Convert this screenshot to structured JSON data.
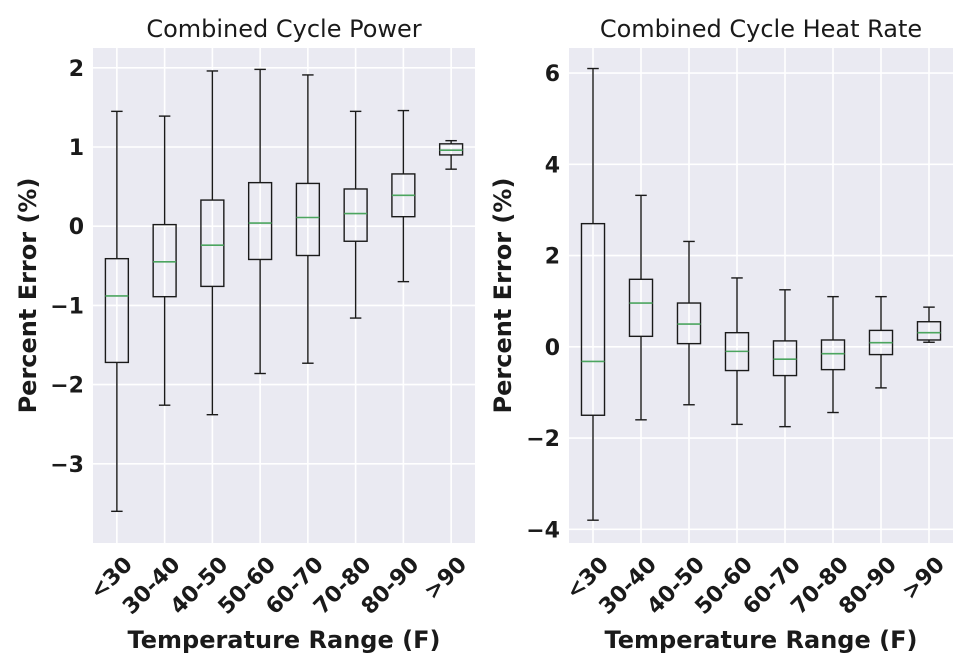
{
  "chart_data": [
    {
      "type": "box",
      "title": "Combined Cycle Power",
      "xlabel": "Temperature Range (F)",
      "ylabel": "Percent Error (%)",
      "ylim": [
        -4.0,
        2.25
      ],
      "yticks": [
        -3,
        -2,
        -1,
        0,
        1,
        2
      ],
      "ytick_labels": [
        "−3",
        "−2",
        "−1",
        "0",
        "1",
        "2"
      ],
      "grid": true,
      "categories": [
        "<30",
        "30-40",
        "40-50",
        "50-60",
        "60-70",
        "70-80",
        "80-90",
        ">90"
      ],
      "boxes": [
        {
          "whislo": -3.6,
          "q1": -1.72,
          "med": -0.88,
          "q3": -0.41,
          "whishi": 1.45
        },
        {
          "whislo": -2.26,
          "q1": -0.89,
          "med": -0.45,
          "q3": 0.02,
          "whishi": 1.39
        },
        {
          "whislo": -2.38,
          "q1": -0.76,
          "med": -0.24,
          "q3": 0.33,
          "whishi": 1.96
        },
        {
          "whislo": -1.86,
          "q1": -0.42,
          "med": 0.04,
          "q3": 0.55,
          "whishi": 1.98
        },
        {
          "whislo": -1.73,
          "q1": -0.37,
          "med": 0.11,
          "q3": 0.54,
          "whishi": 1.91
        },
        {
          "whislo": -1.16,
          "q1": -0.19,
          "med": 0.16,
          "q3": 0.47,
          "whishi": 1.45
        },
        {
          "whislo": -0.7,
          "q1": 0.12,
          "med": 0.39,
          "q3": 0.66,
          "whishi": 1.46
        },
        {
          "whislo": 0.72,
          "q1": 0.9,
          "med": 0.96,
          "q3": 1.04,
          "whishi": 1.08
        }
      ]
    },
    {
      "type": "box",
      "title": "Combined Cycle Heat Rate",
      "xlabel": "Temperature Range (F)",
      "ylabel": "Percent Error (%)",
      "ylim": [
        -4.3,
        6.55
      ],
      "yticks": [
        -4,
        -2,
        0,
        2,
        4,
        6
      ],
      "ytick_labels": [
        "−4",
        "−2",
        "0",
        "2",
        "4",
        "6"
      ],
      "grid": true,
      "categories": [
        "<30",
        "30-40",
        "40-50",
        "50-60",
        "60-70",
        "70-80",
        "80-90",
        ">90"
      ],
      "boxes": [
        {
          "whislo": -3.8,
          "q1": -1.5,
          "med": -0.32,
          "q3": 2.7,
          "whishi": 6.1
        },
        {
          "whislo": -1.6,
          "q1": 0.23,
          "med": 0.96,
          "q3": 1.48,
          "whishi": 3.32
        },
        {
          "whislo": -1.27,
          "q1": 0.07,
          "med": 0.5,
          "q3": 0.96,
          "whishi": 2.31
        },
        {
          "whislo": -1.7,
          "q1": -0.52,
          "med": -0.1,
          "q3": 0.31,
          "whishi": 1.51
        },
        {
          "whislo": -1.75,
          "q1": -0.63,
          "med": -0.27,
          "q3": 0.13,
          "whishi": 1.25
        },
        {
          "whislo": -1.44,
          "q1": -0.5,
          "med": -0.15,
          "q3": 0.15,
          "whishi": 1.1
        },
        {
          "whislo": -0.9,
          "q1": -0.17,
          "med": 0.09,
          "q3": 0.36,
          "whishi": 1.1
        },
        {
          "whislo": 0.1,
          "q1": 0.15,
          "med": 0.31,
          "q3": 0.55,
          "whishi": 0.87
        }
      ]
    }
  ]
}
